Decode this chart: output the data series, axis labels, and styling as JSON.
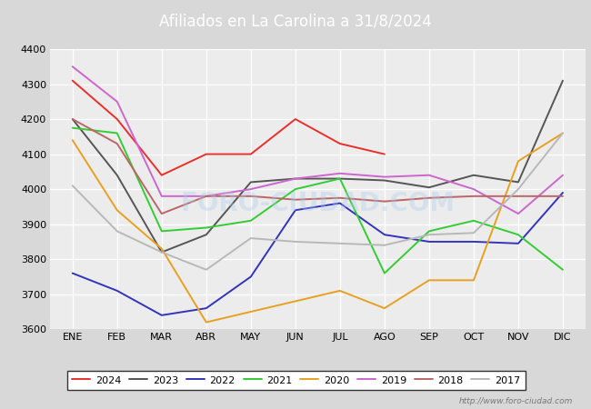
{
  "title": "Afiliados en La Carolina a 31/8/2024",
  "ylim": [
    3600,
    4400
  ],
  "yticks": [
    3600,
    3700,
    3800,
    3900,
    4000,
    4100,
    4200,
    4300,
    4400
  ],
  "months": [
    "ENE",
    "FEB",
    "MAR",
    "ABR",
    "MAY",
    "JUN",
    "JUL",
    "AGO",
    "SEP",
    "OCT",
    "NOV",
    "DIC"
  ],
  "header_color": "#4fa8d5",
  "plot_bg_color": "#ececec",
  "fig_bg_color": "#d8d8d8",
  "grid_color": "#ffffff",
  "watermark": "http://www.foro-ciudad.com",
  "watermark_overlay": "FORO-CIUDAD.COM",
  "series": [
    {
      "year": "2024",
      "color": "#e8302a",
      "data": [
        4310,
        4200,
        4040,
        4100,
        4100,
        4200,
        4130,
        4100,
        null,
        null,
        null,
        null
      ]
    },
    {
      "year": "2023",
      "color": "#555555",
      "data": [
        4200,
        4040,
        3820,
        3870,
        4020,
        4030,
        4030,
        4025,
        4005,
        4040,
        4020,
        4310
      ]
    },
    {
      "year": "2022",
      "color": "#3333bb",
      "data": [
        3760,
        3710,
        3640,
        3660,
        3750,
        3940,
        3960,
        3870,
        3850,
        3850,
        3845,
        3990
      ]
    },
    {
      "year": "2021",
      "color": "#33cc33",
      "data": [
        4175,
        4160,
        3880,
        3890,
        3910,
        4000,
        4030,
        3760,
        3880,
        3910,
        3870,
        3770
      ]
    },
    {
      "year": "2020",
      "color": "#e8a020",
      "data": [
        4140,
        3940,
        3830,
        3620,
        3650,
        3680,
        3710,
        3660,
        3740,
        3740,
        4080,
        4160
      ]
    },
    {
      "year": "2019",
      "color": "#cc66cc",
      "data": [
        4350,
        4250,
        3980,
        3980,
        4000,
        4030,
        4045,
        4035,
        4040,
        4000,
        3930,
        4040
      ]
    },
    {
      "year": "2018",
      "color": "#bb6666",
      "data": [
        4200,
        4130,
        3930,
        3980,
        3980,
        3970,
        3975,
        3965,
        3975,
        3980,
        3980,
        3980
      ]
    },
    {
      "year": "2017",
      "color": "#b8b8b8",
      "data": [
        4010,
        3880,
        3820,
        3770,
        3860,
        3850,
        3845,
        3840,
        3870,
        3875,
        4000,
        4160
      ]
    }
  ]
}
